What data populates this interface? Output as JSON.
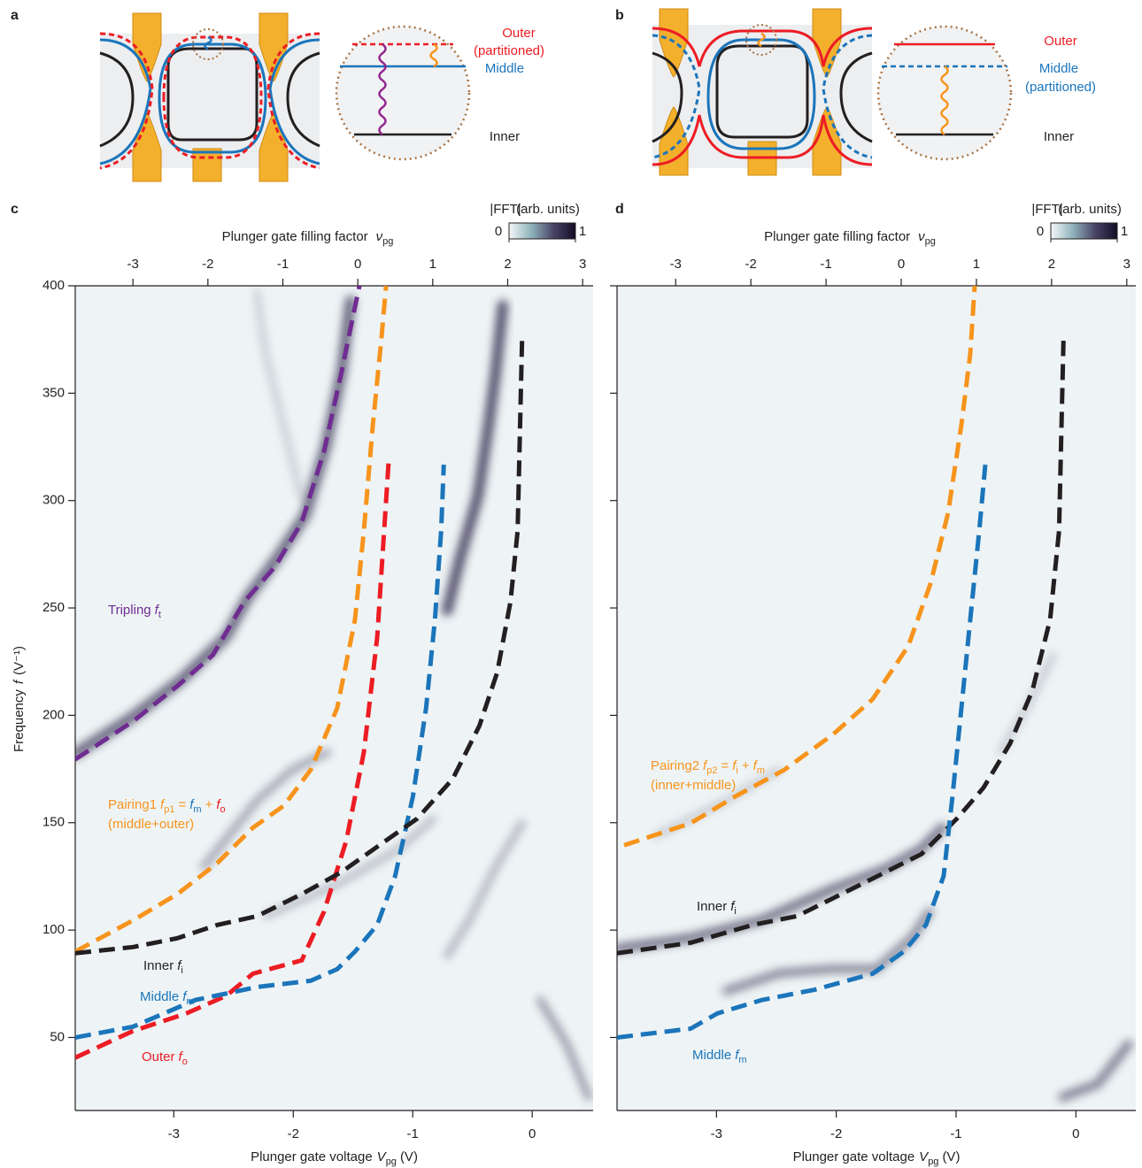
{
  "chart_data": [
    {
      "type": "line",
      "panel": "c",
      "xlabel": {
        "text": "Plunger gate voltage",
        "symbol": "V",
        "sub": "pg",
        "unit": "(V)"
      },
      "x2label": {
        "text": "Plunger gate filling factor",
        "symbol": "ν",
        "sub": "pg"
      },
      "ylabel": {
        "text": "Frequency",
        "symbol": "f",
        "unit": "(V⁻¹)"
      },
      "colorbar": {
        "label": "|FFT|",
        "units": "(arb. units)",
        "ticks": [
          0,
          1
        ],
        "colors": [
          "#f4f8f9",
          "#8fb3bb",
          "#4a4468",
          "#120c24"
        ]
      },
      "xlim": [
        -3.825,
        0.51
      ],
      "xticks": [
        -3,
        -2,
        -1,
        0
      ],
      "x2lim": [
        -3.77,
        3.14
      ],
      "x2ticks": [
        -3,
        -2,
        -1,
        0,
        1,
        2,
        3
      ],
      "ylim": [
        16,
        400
      ],
      "yticks": [
        50,
        100,
        150,
        200,
        250,
        300,
        350,
        400
      ],
      "show_ytick_labels": true,
      "series": [
        {
          "name": "Tripling",
          "formula": [
            {
              "text": "f",
              "sub": "t"
            }
          ],
          "color": "#6f2c91",
          "x": [
            -3.825,
            -3.342,
            -2.97,
            -2.673,
            -2.412,
            -2.152,
            -1.929,
            -1.743,
            -1.595,
            -1.52,
            -1.446
          ],
          "values": [
            179.5,
            197.2,
            213.7,
            228.1,
            252.8,
            269.3,
            289.9,
            322.9,
            360.0,
            380.6,
            400
          ]
        },
        {
          "name": "Pairing1",
          "formula": [
            {
              "text": "f",
              "sub": "p1"
            },
            {
              "text": "="
            },
            {
              "text": "f",
              "sub": "m",
              "color": "#1b75bb"
            },
            {
              "text": "+"
            },
            {
              "text": "f",
              "sub": "o",
              "color": "#ed1c24"
            }
          ],
          "note": "(middle+outer)",
          "color": "#f7941d",
          "x": [
            -3.825,
            -3.342,
            -2.97,
            -2.636,
            -2.338,
            -2.078,
            -1.855,
            -1.632,
            -1.483,
            -1.409,
            -1.334,
            -1.26,
            -1.223
          ],
          "values": [
            90.0,
            104.5,
            116.8,
            131.2,
            147.7,
            158.0,
            174.5,
            203.4,
            244.6,
            285.8,
            335.3,
            376.5,
            400
          ]
        },
        {
          "name": "Outer",
          "formula": [
            {
              "text": "f",
              "sub": "o"
            }
          ],
          "color": "#ed1c24",
          "x": [
            -3.825,
            -3.342,
            -2.896,
            -2.561,
            -2.338,
            -1.929,
            -1.743,
            -1.557,
            -1.409,
            -1.297,
            -1.201
          ],
          "values": [
            40.6,
            53.0,
            61.2,
            69.4,
            79.7,
            85.9,
            108.6,
            141.5,
            182.8,
            236.4,
            318.8
          ]
        },
        {
          "name": "Middle",
          "formula": [
            {
              "text": "f",
              "sub": "m"
            }
          ],
          "color": "#1b75bb",
          "x": [
            -3.825,
            -3.342,
            -2.821,
            -2.301,
            -1.855,
            -1.632,
            -1.483,
            -1.297,
            -1.148,
            -0.999,
            -0.888,
            -0.814,
            -0.762,
            -0.74
          ],
          "values": [
            50.0,
            55.0,
            67.4,
            73.5,
            76.4,
            81.8,
            90.0,
            102.4,
            125.1,
            162.2,
            203.4,
            244.6,
            285.8,
            316.7
          ]
        },
        {
          "name": "Inner",
          "formula": [
            {
              "text": "f",
              "sub": "i"
            }
          ],
          "color": "#231f20",
          "x": [
            -3.825,
            -3.342,
            -2.97,
            -2.636,
            -2.301,
            -1.929,
            -1.595,
            -1.334,
            -0.963,
            -0.665,
            -0.442,
            -0.293,
            -0.182,
            -0.122,
            -0.085
          ],
          "values": [
            89.2,
            92.1,
            96.2,
            102.4,
            106.5,
            116.8,
            127.1,
            137.4,
            151.9,
            170.4,
            195.1,
            219.9,
            252.8,
            285.8,
            374.4
          ]
        }
      ]
    },
    {
      "type": "line",
      "panel": "d",
      "xlabel": {
        "text": "Plunger gate voltage",
        "symbol": "V",
        "sub": "pg",
        "unit": "(V)"
      },
      "x2label": {
        "text": "Plunger gate filling factor",
        "symbol": "ν",
        "sub": "pg"
      },
      "colorbar": {
        "label": "|FFT|",
        "units": "(arb. units)",
        "ticks": [
          0,
          1
        ],
        "colors": [
          "#f4f8f9",
          "#8fb3bb",
          "#4a4468",
          "#120c24"
        ]
      },
      "xlim": [
        -3.83,
        0.5
      ],
      "xticks": [
        -3,
        -2,
        -1,
        0
      ],
      "x2lim": [
        -3.78,
        3.12
      ],
      "x2ticks": [
        -3,
        -2,
        -1,
        0,
        1,
        2,
        3
      ],
      "ylim": [
        16,
        400
      ],
      "yticks": [
        50,
        100,
        150,
        200,
        250,
        300,
        350,
        400
      ],
      "show_ytick_labels": false,
      "series": [
        {
          "name": "Pairing2",
          "formula": [
            {
              "text": "f",
              "sub": "p2"
            },
            {
              "text": "="
            },
            {
              "text": "f",
              "sub": "i"
            },
            {
              "text": "+"
            },
            {
              "text": "f",
              "sub": "m"
            }
          ],
          "note": "(inner+middle)",
          "color": "#f7941d",
          "x": [
            -3.771,
            -3.215,
            -2.845,
            -2.437,
            -2.03,
            -1.697,
            -1.4,
            -1.215,
            -1.067,
            -0.956,
            -0.882,
            -0.845
          ],
          "values": [
            139.5,
            149.8,
            162.2,
            174.5,
            191.0,
            207.5,
            232.2,
            261.1,
            294.1,
            335.3,
            368.3,
            400
          ]
        },
        {
          "name": "Inner",
          "formula": [
            {
              "text": "f",
              "sub": "i"
            }
          ],
          "color": "#231f20",
          "x": [
            -3.83,
            -3.215,
            -2.697,
            -2.326,
            -1.956,
            -1.586,
            -1.289,
            -0.993,
            -0.771,
            -0.549,
            -0.363,
            -0.215,
            -0.141,
            -0.104
          ],
          "values": [
            89.2,
            94.1,
            102.4,
            106.5,
            116.8,
            127.1,
            135.4,
            151.9,
            166.3,
            186.9,
            211.6,
            244.6,
            285.8,
            374.4
          ]
        },
        {
          "name": "Middle",
          "formula": [
            {
              "text": "f",
              "sub": "m"
            }
          ],
          "color": "#1b75bb",
          "x": [
            -3.83,
            -3.215,
            -2.993,
            -2.622,
            -2.178,
            -1.697,
            -1.437,
            -1.252,
            -1.104,
            -1.03,
            -0.956,
            -0.882,
            -0.807,
            -0.756
          ],
          "values": [
            50.0,
            54.1,
            61.2,
            67.4,
            72.3,
            79.7,
            90.0,
            102.4,
            125.1,
            162.2,
            203.4,
            244.6,
            285.8,
            316.7
          ]
        }
      ]
    }
  ],
  "schematics": [
    {
      "panel": "a",
      "labels": [
        "Outer",
        "(partitioned)",
        "Middle",
        "Inner"
      ]
    },
    {
      "panel": "b",
      "labels": [
        "Outer",
        "Middle",
        "(partitioned)",
        "Inner"
      ]
    }
  ]
}
